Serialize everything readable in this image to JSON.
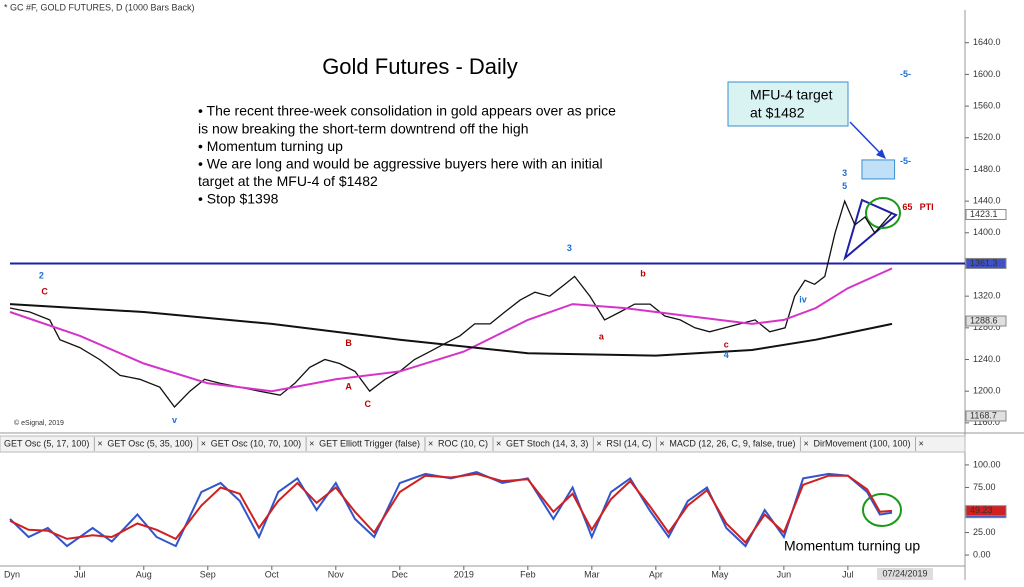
{
  "header": "* GC #F, GOLD FUTURES, D (1000 Bars Back)",
  "copyright": "© eSignal, 2019",
  "corner": "Dyn",
  "date_label": "07/24/2019",
  "tabs": [
    "GET Osc (5, 17, 100)",
    "GET Osc (5, 35, 100)",
    "GET Osc (10, 70, 100)",
    "GET Elliott Trigger (false)",
    "ROC (10, C)",
    "GET Stoch (14, 3, 3)",
    "RSI (14, C)",
    "MACD (12, 26, C, 9, false, true)",
    "DirMovement (100, 100)"
  ],
  "chart_data": [
    {
      "type": "line",
      "title": "Gold Futures - Daily",
      "bullets": [
        "• The recent three-week consolidation in gold appears over as price",
        "   is now breaking the short-term downtrend off the high",
        "• Momentum turning up",
        "• We are long and would be aggressive buyers here with an initial",
        "   target at the MFU-4 of $1482",
        "• Stop $1398"
      ],
      "target_note": [
        "MFU-4 target",
        "at $1482"
      ],
      "xlim": [
        -1.09,
        13.83
      ],
      "ylim": [
        1151,
        1675
      ],
      "yticks": [
        {
          "value": 1160,
          "label": "1160.0"
        },
        {
          "value": 1200,
          "label": "1200.0"
        },
        {
          "value": 1240,
          "label": "1240.0"
        },
        {
          "value": 1280,
          "label": "1280.0"
        },
        {
          "value": 1320,
          "label": "1320.0"
        },
        {
          "value": 1360,
          "label": "1360.0"
        },
        {
          "value": 1400,
          "label": "1400.0"
        },
        {
          "value": 1440,
          "label": "1440.0"
        },
        {
          "value": 1480,
          "label": "1480.0"
        },
        {
          "value": 1520,
          "label": "1520.0"
        },
        {
          "value": 1560,
          "label": "1560.0"
        },
        {
          "value": 1600,
          "label": "1600.0"
        },
        {
          "value": 1640,
          "label": "1640.0"
        }
      ],
      "reference_line": 1361.3,
      "reference_color": "#1f1fa8",
      "target_zone": {
        "x": [
          12.22,
          12.73
        ],
        "y": [
          1468,
          1492
        ]
      },
      "price_tags": [
        {
          "value": 1423.1,
          "color": "#ffffff"
        },
        {
          "value": 1361.3,
          "color": "#3f51c8"
        },
        {
          "value": 1288.6,
          "color": "#e0e0e0"
        },
        {
          "value": 1168.7,
          "color": "#e0e0e0"
        }
      ],
      "series": [
        {
          "name": "Price",
          "color": "#111111",
          "x": [
            -1.09,
            -0.78,
            -0.47,
            -0.31,
            0,
            0.31,
            0.63,
            0.94,
            1.25,
            1.48,
            1.72,
            1.95,
            2.19,
            2.5,
            2.81,
            3.13,
            3.36,
            3.59,
            3.83,
            4.06,
            4.3,
            4.53,
            4.77,
            5,
            5.23,
            5.47,
            5.7,
            5.94,
            6.17,
            6.41,
            6.64,
            6.88,
            7.11,
            7.34,
            7.58,
            7.73,
            7.97,
            8.2,
            8.44,
            8.67,
            8.91,
            9.14,
            9.38,
            9.61,
            9.84,
            10.08,
            10.31,
            10.55,
            10.78,
            11.02,
            11.17,
            11.33,
            11.48,
            11.64,
            11.8,
            11.95,
            12.11,
            12.27,
            12.42,
            12.58,
            12.69
          ],
          "values": [
            1305,
            1300,
            1290,
            1265,
            1255,
            1240,
            1220,
            1215,
            1205,
            1180,
            1200,
            1215,
            1210,
            1205,
            1200,
            1195,
            1210,
            1230,
            1240,
            1235,
            1225,
            1200,
            1215,
            1225,
            1240,
            1250,
            1260,
            1270,
            1285,
            1285,
            1300,
            1315,
            1325,
            1320,
            1335,
            1345,
            1320,
            1290,
            1300,
            1310,
            1310,
            1295,
            1290,
            1280,
            1275,
            1280,
            1285,
            1290,
            1275,
            1280,
            1320,
            1340,
            1335,
            1345,
            1400,
            1440,
            1410,
            1420,
            1400,
            1415,
            1425
          ]
        },
        {
          "name": "Fast MA",
          "color": "#d633c8",
          "x": [
            -1.09,
            0,
            1,
            2,
            3,
            4,
            5,
            6,
            7,
            7.7,
            8.5,
            9.5,
            10.5,
            11,
            11.5,
            12,
            12.69
          ],
          "values": [
            1300,
            1270,
            1235,
            1210,
            1200,
            1215,
            1225,
            1250,
            1290,
            1310,
            1305,
            1295,
            1285,
            1290,
            1305,
            1330,
            1355
          ]
        },
        {
          "name": "Slow MA",
          "color": "#111111",
          "x": [
            -1.09,
            1,
            3,
            5,
            7,
            9,
            10.5,
            11.5,
            12.69
          ],
          "values": [
            1310,
            1300,
            1285,
            1265,
            1248,
            1245,
            1252,
            1265,
            1285
          ]
        }
      ],
      "wave_labels": [
        {
          "text": "C",
          "x": -0.55,
          "y": 1325,
          "color": "#c00000"
        },
        {
          "text": "2",
          "x": -0.6,
          "y": 1345,
          "color": "#1b6fd1"
        },
        {
          "text": "v",
          "x": 1.48,
          "y": 1163,
          "color": "#1b6fd1"
        },
        {
          "text": "A",
          "x": 4.2,
          "y": 1205,
          "color": "#c00000"
        },
        {
          "text": "B",
          "x": 4.2,
          "y": 1260,
          "color": "#c00000"
        },
        {
          "text": "C",
          "x": 4.5,
          "y": 1183,
          "color": "#c00000"
        },
        {
          "text": "a",
          "x": 8.15,
          "y": 1268,
          "color": "#c00000"
        },
        {
          "text": "b",
          "x": 8.8,
          "y": 1348,
          "color": "#c00000"
        },
        {
          "text": "c",
          "x": 10.1,
          "y": 1258,
          "color": "#c00000"
        },
        {
          "text": "3",
          "x": 7.65,
          "y": 1380,
          "color": "#1b6fd1"
        },
        {
          "text": "4",
          "x": 10.1,
          "y": 1245,
          "color": "#1b6fd1"
        },
        {
          "text": "iv",
          "x": 11.3,
          "y": 1315,
          "color": "#1b6fd1"
        },
        {
          "text": "5",
          "x": 11.95,
          "y": 1458,
          "color": "#1b6fd1"
        },
        {
          "text": "3",
          "x": 11.95,
          "y": 1475,
          "color": "#1b6fd1"
        },
        {
          "text": "-5-",
          "x": 12.9,
          "y": 1490,
          "color": "#1b6fd1"
        },
        {
          "text": "-5-",
          "x": 12.9,
          "y": 1600,
          "color": "#1b6fd1"
        },
        {
          "text": "65",
          "x": 12.93,
          "y": 1432,
          "color": "#c00000"
        },
        {
          "text": "PTI",
          "x": 13.23,
          "y": 1432,
          "color": "#c00000"
        }
      ]
    },
    {
      "type": "line",
      "annotation": "Momentum turning up",
      "xlim": [
        -1.09,
        13.83
      ],
      "xticks": [
        {
          "value": 0,
          "label": "Jul"
        },
        {
          "value": 1,
          "label": "Aug"
        },
        {
          "value": 2,
          "label": "Sep"
        },
        {
          "value": 3,
          "label": "Oct"
        },
        {
          "value": 4,
          "label": "Nov"
        },
        {
          "value": 5,
          "label": "Dec"
        },
        {
          "value": 6,
          "label": "2019"
        },
        {
          "value": 7,
          "label": "Feb"
        },
        {
          "value": 8,
          "label": "Mar"
        },
        {
          "value": 9,
          "label": "Apr"
        },
        {
          "value": 10,
          "label": "May"
        },
        {
          "value": 11,
          "label": "Jun"
        },
        {
          "value": 12,
          "label": "Jul"
        }
      ],
      "ylim": [
        -11,
        111
      ],
      "yticks": [
        {
          "value": 0,
          "label": "0.00"
        },
        {
          "value": 25,
          "label": "25.00"
        },
        {
          "value": 50,
          "label": "50.00"
        },
        {
          "value": 75,
          "label": "75.00"
        },
        {
          "value": 100,
          "label": "100.00"
        }
      ],
      "stoch_tags": [
        {
          "value": 47.02,
          "color": "#3f51c8"
        },
        {
          "value": 49.23,
          "color": "#d02020"
        }
      ],
      "series": [
        {
          "name": "%K",
          "color": "#3355cc",
          "x": [
            -1.09,
            -0.8,
            -0.5,
            -0.2,
            0.2,
            0.5,
            0.9,
            1.2,
            1.5,
            1.9,
            2.2,
            2.5,
            2.8,
            3.1,
            3.4,
            3.7,
            4,
            4.3,
            4.6,
            5,
            5.4,
            5.8,
            6.2,
            6.6,
            7,
            7.4,
            7.7,
            8,
            8.3,
            8.6,
            8.9,
            9.2,
            9.5,
            9.8,
            10.1,
            10.4,
            10.7,
            11,
            11.3,
            11.7,
            12,
            12.3,
            12.5,
            12.69
          ],
          "values": [
            40,
            20,
            30,
            10,
            30,
            15,
            45,
            20,
            10,
            70,
            80,
            60,
            20,
            70,
            85,
            50,
            80,
            40,
            20,
            80,
            90,
            85,
            92,
            80,
            85,
            40,
            75,
            20,
            70,
            85,
            50,
            20,
            60,
            75,
            30,
            10,
            50,
            20,
            85,
            90,
            88,
            70,
            45,
            47
          ]
        },
        {
          "name": "%D",
          "color": "#d02020",
          "x": [
            -1.09,
            -0.8,
            -0.5,
            -0.2,
            0.2,
            0.5,
            0.9,
            1.2,
            1.5,
            1.9,
            2.2,
            2.5,
            2.8,
            3.1,
            3.4,
            3.7,
            4,
            4.3,
            4.6,
            5,
            5.4,
            5.8,
            6.2,
            6.6,
            7,
            7.4,
            7.7,
            8,
            8.3,
            8.6,
            8.9,
            9.2,
            9.5,
            9.8,
            10.1,
            10.4,
            10.7,
            11,
            11.3,
            11.7,
            12,
            12.3,
            12.5,
            12.69
          ],
          "values": [
            38,
            28,
            27,
            18,
            22,
            20,
            35,
            28,
            18,
            55,
            75,
            68,
            30,
            60,
            80,
            58,
            75,
            48,
            25,
            70,
            88,
            86,
            90,
            82,
            84,
            48,
            68,
            28,
            62,
            82,
            55,
            25,
            55,
            72,
            35,
            14,
            45,
            25,
            78,
            88,
            88,
            73,
            48,
            49
          ]
        }
      ]
    }
  ]
}
